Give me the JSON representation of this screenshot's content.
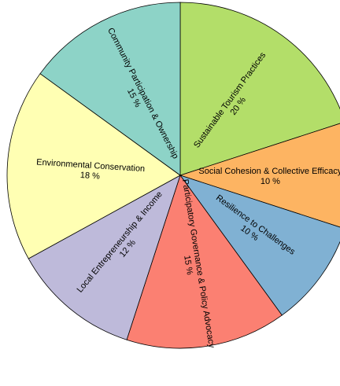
{
  "chart_data": {
    "type": "pie",
    "title": "",
    "slices": [
      {
        "label": "Sustainable Tourism Practices",
        "value": 20,
        "value_label": "20 %",
        "color": "#b3de69"
      },
      {
        "label": "Social Cohesion & Collective Efficacy",
        "value": 10,
        "value_label": "10 %",
        "color": "#fdb462"
      },
      {
        "label": "Resilience to Challenges",
        "value": 10,
        "value_label": "10 %",
        "color": "#80b1d3"
      },
      {
        "label": "Participatory Governance & Policy Advocacy",
        "value": 15,
        "value_label": "15 %",
        "color": "#fb8072"
      },
      {
        "label": "Local Entrepreneurship & Income",
        "value": 12,
        "value_label": "12 %",
        "color": "#bebada"
      },
      {
        "label": "Environmental Conservation",
        "value": 18,
        "value_label": "18 %",
        "color": "#ffffb3"
      },
      {
        "label": "Community Participation & Ownership",
        "value": 15,
        "value_label": "15 %",
        "color": "#8dd3c7"
      }
    ],
    "start": "top",
    "direction": "clockwise",
    "legend": "none"
  }
}
